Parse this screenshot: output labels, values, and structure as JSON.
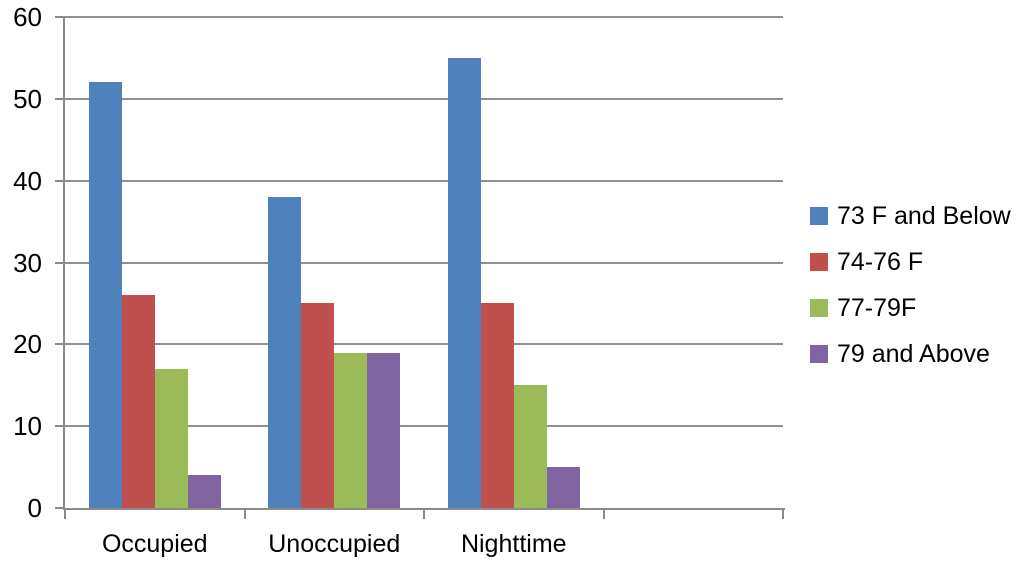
{
  "chart_data": {
    "type": "bar",
    "title": "",
    "xlabel": "",
    "ylabel": "",
    "categories": [
      "Occupied",
      "Unoccupied",
      "Nighttime"
    ],
    "series": [
      {
        "name": "73 F and Below",
        "color": "#4F81BD",
        "values": [
          52,
          38,
          55
        ]
      },
      {
        "name": "74-76 F",
        "color": "#C0504D",
        "values": [
          26,
          25,
          25
        ]
      },
      {
        "name": "77-79F",
        "color": "#9BBB59",
        "values": [
          17,
          19,
          15
        ]
      },
      {
        "name": "79 and Above",
        "color": "#8064A2",
        "values": [
          4,
          19,
          5
        ]
      }
    ],
    "ylim": [
      0,
      60
    ],
    "yticks": [
      0,
      10,
      20,
      30,
      40,
      50,
      60
    ],
    "grid": true,
    "legend_position": "right",
    "x_axis_slots": 4,
    "colors": {
      "axis": "#8A8A8A",
      "gridline": "#8F8F8F",
      "text": "#000000",
      "background": "#FFFFFF"
    }
  }
}
